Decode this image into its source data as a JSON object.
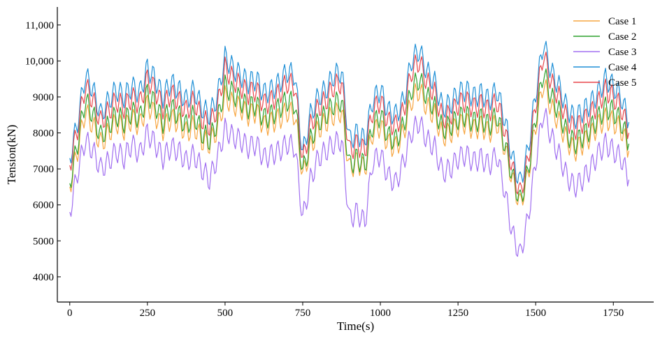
{
  "chart_data": {
    "type": "line",
    "title": "",
    "xlabel": "Time(s)",
    "ylabel": "Tension(kN)",
    "xlim": [
      -40,
      1880
    ],
    "ylim": [
      3300,
      11500
    ],
    "xticks": [
      0,
      250,
      500,
      750,
      1000,
      1250,
      1500,
      1750
    ],
    "xtick_labels": [
      "0",
      "250",
      "500",
      "750",
      "1000",
      "1250",
      "1500",
      "1750"
    ],
    "yticks": [
      4000,
      5000,
      6000,
      7000,
      8000,
      9000,
      10000,
      11000
    ],
    "ytick_labels": [
      "4000",
      "5000",
      "6000",
      "7000",
      "8000",
      "9000",
      "10,000",
      "11,000"
    ],
    "grid": false,
    "legend_position": "top-right",
    "x": [
      0,
      25,
      50,
      75,
      100,
      125,
      150,
      175,
      200,
      225,
      250,
      275,
      300,
      325,
      350,
      375,
      400,
      425,
      450,
      475,
      500,
      525,
      550,
      575,
      600,
      625,
      650,
      675,
      700,
      725,
      750,
      775,
      800,
      825,
      850,
      875,
      900,
      925,
      950,
      975,
      1000,
      1025,
      1050,
      1075,
      1100,
      1125,
      1150,
      1175,
      1200,
      1225,
      1250,
      1275,
      1300,
      1325,
      1350,
      1375,
      1400,
      1425,
      1450,
      1475,
      1500,
      1525,
      1550,
      1575,
      1600,
      1625,
      1650,
      1675,
      1700,
      1725,
      1750,
      1775,
      1800
    ],
    "series": [
      {
        "name": "Case 1",
        "color": "#f7a540",
        "values": [
          6500,
          7500,
          8600,
          8200,
          7700,
          8000,
          8300,
          8100,
          8400,
          8200,
          8800,
          8500,
          8100,
          8400,
          8300,
          8000,
          8200,
          7800,
          7700,
          8100,
          9000,
          8800,
          8700,
          8500,
          8600,
          8200,
          8300,
          8400,
          8600,
          8500,
          6800,
          7600,
          8100,
          8300,
          8500,
          8600,
          7000,
          7200,
          7000,
          8000,
          8200,
          7700,
          7600,
          8000,
          8900,
          9200,
          8700,
          8500,
          7900,
          8000,
          8200,
          8300,
          8100,
          8200,
          8000,
          8300,
          7600,
          6700,
          6000,
          6800,
          8200,
          9400,
          8700,
          8300,
          7800,
          7500,
          7700,
          7900,
          8200,
          8400,
          8300,
          8100,
          7500
        ]
      },
      {
        "name": "Case 2",
        "color": "#2ca02c",
        "values": [
          6600,
          7700,
          8900,
          8500,
          7900,
          8200,
          8500,
          8300,
          8600,
          8400,
          9100,
          8800,
          8300,
          8700,
          8500,
          8200,
          8500,
          8000,
          7800,
          8300,
          9300,
          9100,
          8900,
          8700,
          8800,
          8400,
          8500,
          8700,
          8900,
          8800,
          6900,
          7800,
          8300,
          8500,
          8800,
          8900,
          7100,
          7300,
          7100,
          8200,
          8500,
          7900,
          7800,
          8200,
          9200,
          9500,
          9000,
          8700,
          8100,
          8200,
          8400,
          8500,
          8300,
          8400,
          8200,
          8500,
          7700,
          6800,
          6100,
          6900,
          8400,
          9700,
          9000,
          8600,
          8000,
          7700,
          7900,
          8100,
          8400,
          8700,
          8600,
          8300,
          7700
        ]
      },
      {
        "name": "Case 3",
        "color": "#a06ef0",
        "values": [
          5800,
          6900,
          7800,
          7500,
          7000,
          7200,
          7500,
          7300,
          7700,
          7400,
          8000,
          7700,
          7300,
          7600,
          7500,
          7200,
          7400,
          7000,
          6700,
          7300,
          8100,
          7900,
          7800,
          7600,
          7700,
          7300,
          7400,
          7500,
          7700,
          7600,
          5600,
          6700,
          7300,
          7500,
          7700,
          7800,
          5600,
          5800,
          5500,
          7200,
          7400,
          6800,
          6600,
          7200,
          8000,
          8300,
          7800,
          7600,
          6900,
          7000,
          7300,
          7400,
          7200,
          7300,
          7100,
          7400,
          6400,
          5200,
          4600,
          5600,
          7200,
          8600,
          7900,
          7400,
          6800,
          6500,
          6700,
          7000,
          7400,
          7700,
          7500,
          7300,
          6700
        ]
      },
      {
        "name": "Case 4",
        "color": "#1f8fd6",
        "values": [
          7300,
          8300,
          9600,
          9200,
          8500,
          8900,
          9200,
          9000,
          9300,
          9100,
          9800,
          9500,
          9000,
          9400,
          9200,
          8900,
          9200,
          8700,
          8500,
          9000,
          10100,
          9800,
          9600,
          9400,
          9500,
          9100,
          9200,
          9400,
          9700,
          9600,
          7400,
          8500,
          9000,
          9200,
          9600,
          9700,
          7800,
          8000,
          7800,
          8900,
          9200,
          8600,
          8500,
          8900,
          10000,
          10300,
          9700,
          9400,
          8700,
          8800,
          9100,
          9200,
          9000,
          9100,
          8900,
          9200,
          8400,
          7300,
          6600,
          7500,
          9100,
          10500,
          9700,
          9300,
          8700,
          8400,
          8600,
          8800,
          9100,
          9500,
          9300,
          9000,
          8300
        ]
      },
      {
        "name": "Case 5",
        "color": "#e8454a",
        "values": [
          7100,
          8100,
          9300,
          8900,
          8300,
          8600,
          8900,
          8700,
          9000,
          8800,
          9500,
          9200,
          8700,
          9100,
          8900,
          8600,
          8900,
          8400,
          8200,
          8700,
          9800,
          9500,
          9300,
          9100,
          9200,
          8800,
          8900,
          9100,
          9400,
          9300,
          7200,
          8200,
          8700,
          8900,
          9300,
          9400,
          7500,
          7700,
          7500,
          8600,
          8900,
          8300,
          8200,
          8600,
          9700,
          10000,
          9400,
          9100,
          8400,
          8500,
          8800,
          8900,
          8700,
          8800,
          8600,
          8900,
          8100,
          7000,
          6300,
          7200,
          8800,
          10200,
          9400,
          9000,
          8400,
          8100,
          8300,
          8500,
          8800,
          9200,
          9000,
          8700,
          8000
        ]
      }
    ]
  }
}
